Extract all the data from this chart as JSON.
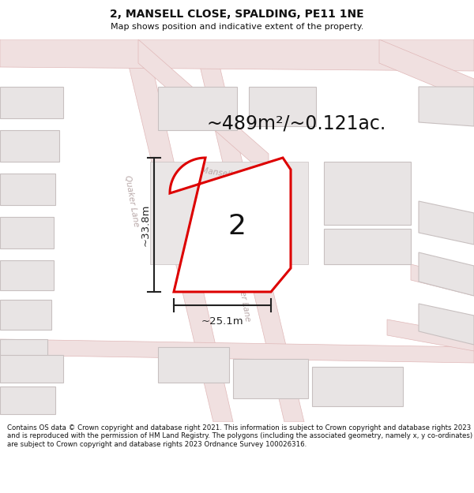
{
  "title": "2, MANSELL CLOSE, SPALDING, PE11 1NE",
  "subtitle": "Map shows position and indicative extent of the property.",
  "area_label": "~489m²/~0.121ac.",
  "plot_number": "2",
  "dim_width": "~25.1m",
  "dim_height": "~33.8m",
  "footer": "Contains OS data © Crown copyright and database right 2021. This information is subject to Crown copyright and database rights 2023 and is reproduced with the permission of HM Land Registry. The polygons (including the associated geometry, namely x, y co-ordinates) are subject to Crown copyright and database rights 2023 Ordnance Survey 100026316.",
  "map_bg": "#f5f0f0",
  "road_fill": "#f0e0e0",
  "road_line": "#e0b8b8",
  "building_fill": "#e8e4e4",
  "building_edge": "#c8c0c0",
  "plot_fill": "#ffffff",
  "plot_edge": "#dd0000",
  "street_label_color": "#b8a8a8",
  "dim_color": "#222222",
  "title_color": "#111111",
  "footer_color": "#111111"
}
